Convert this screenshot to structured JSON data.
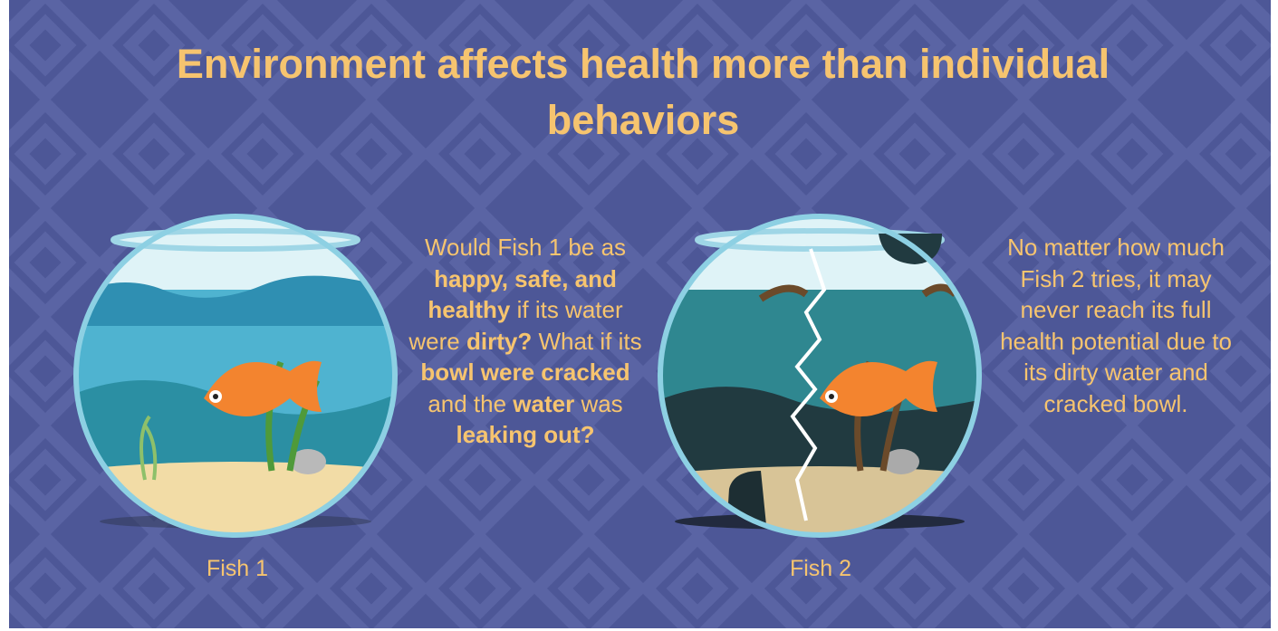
{
  "title": "Environment affects health more than individual behaviors",
  "panels": [
    {
      "caption": "Fish 1",
      "text": [
        {
          "text": "Would Fish 1 be as ",
          "bold": false
        },
        {
          "text": "happy, safe, and healthy",
          "bold": true
        },
        {
          "text": " if its water were ",
          "bold": false
        },
        {
          "text": "dirty?",
          "bold": true
        },
        {
          "text": " What if its ",
          "bold": false
        },
        {
          "text": "bowl were cracked",
          "bold": true
        },
        {
          "text": " and the ",
          "bold": false
        },
        {
          "text": "water",
          "bold": true
        },
        {
          "text": " was ",
          "bold": false
        },
        {
          "text": "leaking out?",
          "bold": true
        }
      ]
    },
    {
      "caption": "Fish 2",
      "text": [
        {
          "text": "No matter how much Fish 2 tries, it may never reach its full health potential due to its dirty water and cracked bowl.",
          "bold": false
        }
      ]
    }
  ]
}
